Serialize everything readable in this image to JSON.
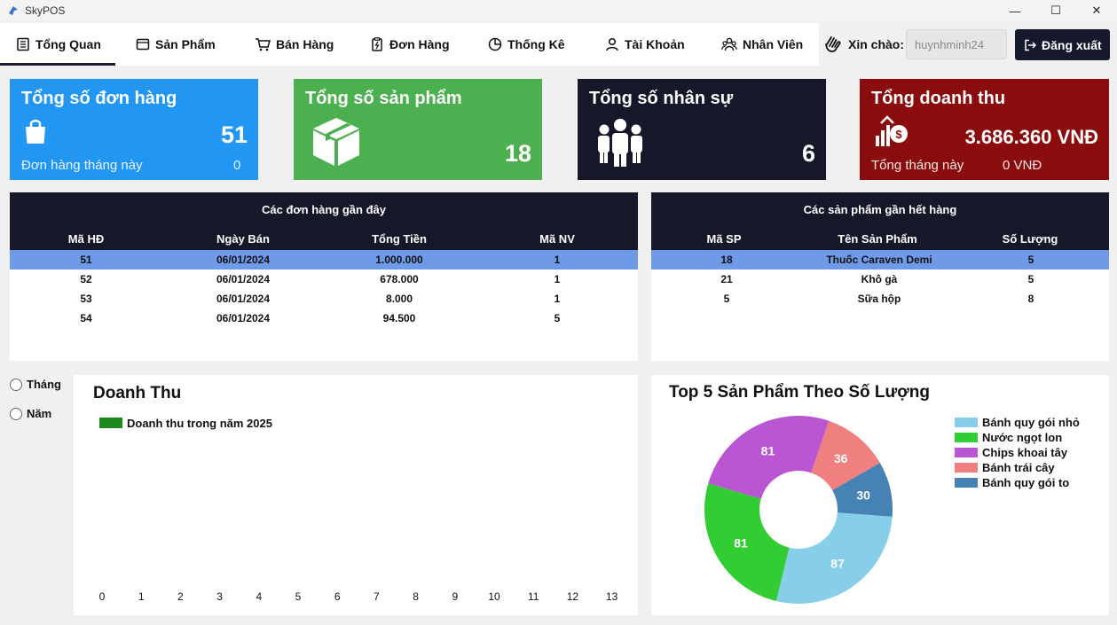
{
  "window": {
    "title": "SkyPOS"
  },
  "nav": {
    "items": [
      {
        "label": "Tổng Quan"
      },
      {
        "label": "Sản Phẩm"
      },
      {
        "label": "Bán Hàng"
      },
      {
        "label": "Đơn Hàng"
      },
      {
        "label": "Thống Kê"
      },
      {
        "label": "Tài Khoản"
      },
      {
        "label": "Nhân Viên"
      }
    ]
  },
  "user": {
    "greeting": "Xin chào:",
    "username": "huynhminh24",
    "logout_label": "Đăng xuất"
  },
  "cards": {
    "orders": {
      "title": "Tổng số đơn hàng",
      "value": "51",
      "sub_label": "Đơn hàng tháng này",
      "sub_value": "0",
      "color": "#2196f3"
    },
    "products": {
      "title": "Tổng số sản phẩm",
      "value": "18",
      "color": "#4caf50"
    },
    "staff": {
      "title": "Tổng số nhân sự",
      "value": "6",
      "color": "#16182a"
    },
    "revenue": {
      "title": "Tổng doanh thu",
      "value": "3.686.360 VNĐ",
      "sub_label": "Tổng tháng này",
      "sub_value": "0 VNĐ",
      "color": "#8b0c0c"
    }
  },
  "recent_orders": {
    "title": "Các đơn hàng gần đây",
    "columns": [
      "Mã HĐ",
      "Ngày Bán",
      "Tổng Tiền",
      "Mã NV"
    ],
    "rows": [
      [
        "51",
        "06/01/2024",
        "1.000.000",
        "1"
      ],
      [
        "52",
        "06/01/2024",
        "678.000",
        "1"
      ],
      [
        "53",
        "06/01/2024",
        "8.000",
        "1"
      ],
      [
        "54",
        "06/01/2024",
        "94.500",
        "5"
      ]
    ],
    "selected_row": 0
  },
  "low_stock": {
    "title": "Các sản phẩm gần hết hàng",
    "columns": [
      "Mã SP",
      "Tên Sản Phẩm",
      "Số Lượng"
    ],
    "rows": [
      [
        "18",
        "Thuốc Caraven Demi",
        "5"
      ],
      [
        "21",
        "Khô gà",
        "5"
      ],
      [
        "5",
        "Sữa hộp",
        "8"
      ]
    ],
    "selected_row": 0
  },
  "period": {
    "month_label": "Tháng",
    "year_label": "Năm"
  },
  "chart_data": [
    {
      "type": "bar",
      "title": "Doanh Thu",
      "legend": [
        "Doanh thu trong năm 2025"
      ],
      "series": [
        {
          "name": "Doanh thu trong năm 2025",
          "values": []
        }
      ],
      "x_ticks": [
        "0",
        "1",
        "2",
        "3",
        "4",
        "5",
        "6",
        "7",
        "8",
        "9",
        "10",
        "11",
        "12",
        "13"
      ],
      "series_color": "#1c8a1c"
    },
    {
      "type": "pie",
      "title": "Top 5 Sản Phẩm Theo Số Lượng",
      "labels": [
        "Bánh quy gói nhỏ",
        "Nước ngọt lon",
        "Chips khoai tây",
        "Bánh trái cây",
        "Bánh quy gói to"
      ],
      "values": [
        87,
        81,
        81,
        36,
        30
      ],
      "colors": [
        "#87ceeb",
        "#32cd32",
        "#ba55d3",
        "#f08080",
        "#4682b4"
      ],
      "legend_position": "top-right",
      "donut": true
    }
  ]
}
